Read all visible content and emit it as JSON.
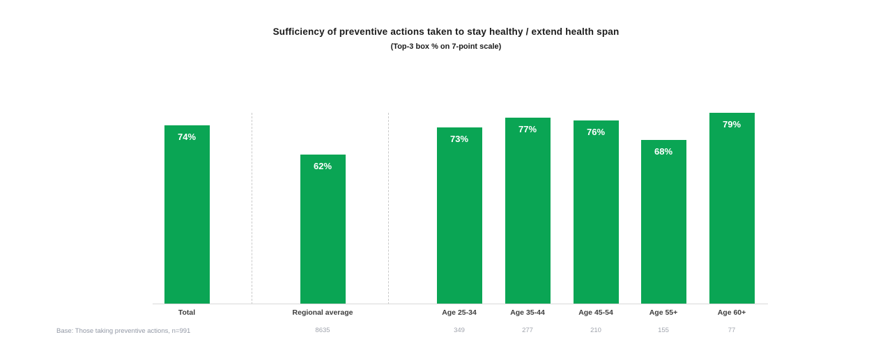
{
  "title": "Sufficiency of preventive actions taken to stay healthy / extend health span",
  "subtitle": "(Top-3 box % on 7-point scale)",
  "base_note": "Base: Those taking preventive actions, n=991",
  "colors": {
    "bar": "#0aa554",
    "value_label": "#ffffff",
    "axis": "#d8d8d8",
    "separator": "#c9c9c9",
    "category_label": "#3d3d3d",
    "sample_label": "#a0a4ad",
    "title_text": "#1a1a1a"
  },
  "chart_data": {
    "type": "bar",
    "title": "Sufficiency of preventive actions taken to stay healthy / extend health span",
    "subtitle": "(Top-3 box % on 7-point scale)",
    "categories": [
      "Total",
      "Regional average",
      "Age 25-34",
      "Age 35-44",
      "Age 45-54",
      "Age 55+",
      "Age 60+"
    ],
    "values": [
      74,
      62,
      73,
      77,
      76,
      68,
      79
    ],
    "value_labels": [
      "74%",
      "62%",
      "73%",
      "77%",
      "76%",
      "68%",
      "79%"
    ],
    "sample_sizes": [
      "",
      "8635",
      "349",
      "277",
      "210",
      "155",
      "77"
    ],
    "unit": "%",
    "ylim": [
      0,
      100
    ],
    "grid": false,
    "legend_position": "none",
    "separators_after_categories": [
      "Total",
      "Regional average"
    ],
    "bar_color": "#0aa554"
  }
}
